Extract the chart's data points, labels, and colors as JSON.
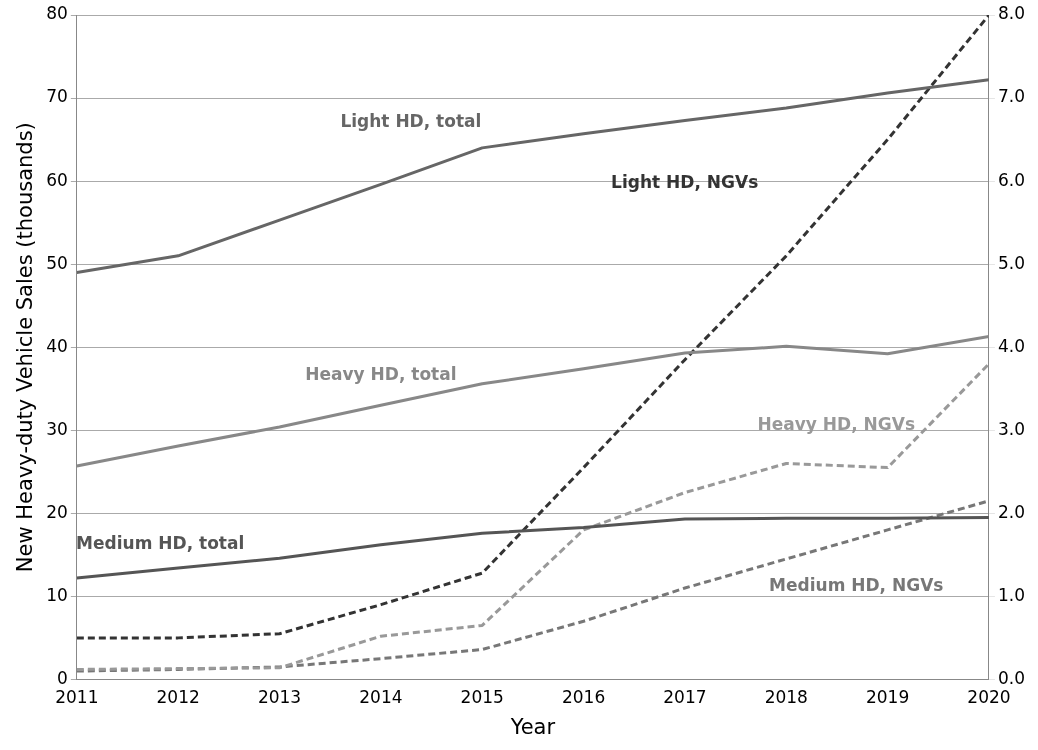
{
  "chart_data": {
    "type": "line",
    "xlabel": "Year",
    "ylabel": "New Heavy-duty Vehicle Sales (thousands)",
    "x": [
      2011,
      2012,
      2013,
      2014,
      2015,
      2016,
      2017,
      2018,
      2019,
      2020
    ],
    "xlim": [
      2011,
      2020
    ],
    "xticks": [
      2011,
      2012,
      2013,
      2014,
      2015,
      2016,
      2017,
      2018,
      2019,
      2020
    ],
    "ylim": [
      0,
      80
    ],
    "yticks": [
      0,
      10,
      20,
      30,
      40,
      50,
      60,
      70,
      80
    ],
    "y2lim": [
      0,
      8
    ],
    "y2ticks": [
      {
        "value": 0,
        "label": "0.0"
      },
      {
        "value": 1,
        "label": "1.0"
      },
      {
        "value": 2,
        "label": "2.0"
      },
      {
        "value": 3,
        "label": "3.0"
      },
      {
        "value": 4,
        "label": "4.0"
      },
      {
        "value": 5,
        "label": "5.0"
      },
      {
        "value": 6,
        "label": "6.0"
      },
      {
        "value": 7,
        "label": "7.0"
      },
      {
        "value": 8,
        "label": "8.0"
      }
    ],
    "grid": "y",
    "legend": false,
    "marker": "none",
    "series": [
      {
        "name": "Light HD, total",
        "color": "#666666",
        "line_style": "solid",
        "values": [
          49,
          51,
          55.3,
          59.6,
          64,
          65.7,
          67.3,
          68.8,
          70.6,
          72.2
        ]
      },
      {
        "name": "Heavy HD, total",
        "color": "#888888",
        "line_style": "solid",
        "values": [
          25.7,
          28.1,
          30.4,
          33,
          35.6,
          37.4,
          39.3,
          40.1,
          39.2,
          41.3
        ]
      },
      {
        "name": "Medium HD, total",
        "color": "#555555",
        "line_style": "solid",
        "values": [
          12.2,
          13.4,
          14.6,
          16.2,
          17.6,
          18.3,
          19.3,
          19.4,
          19.4,
          19.5
        ]
      },
      {
        "name": "Light HD, NGVs",
        "color": "#333333",
        "line_style": "dashed",
        "axis": "y2",
        "values": [
          0.5,
          0.5,
          0.55,
          0.9,
          1.28,
          2.55,
          3.85,
          5.1,
          6.5,
          8.0
        ]
      },
      {
        "name": "Heavy HD, NGVs",
        "color": "#999999",
        "line_style": "dashed",
        "axis": "y2",
        "values": [
          0.12,
          0.13,
          0.14,
          0.52,
          0.65,
          1.8,
          2.25,
          2.6,
          2.55,
          3.8
        ]
      },
      {
        "name": "Medium HD, NGVs",
        "color": "#777777",
        "line_style": "dashed",
        "axis": "y2",
        "values": [
          0.1,
          0.12,
          0.15,
          0.25,
          0.36,
          0.7,
          1.1,
          1.45,
          1.8,
          2.15
        ]
      }
    ]
  }
}
